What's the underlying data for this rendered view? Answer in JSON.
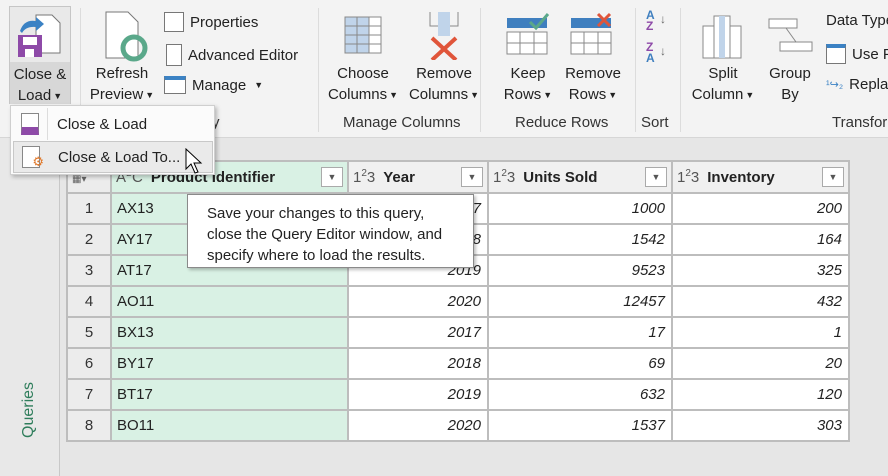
{
  "ribbon": {
    "close_load": {
      "line1": "Close &",
      "line2": "Load"
    },
    "refresh": {
      "line1": "Refresh",
      "line2": "Preview"
    },
    "properties": "Properties",
    "advanced_editor": "Advanced Editor",
    "manage": "Manage",
    "query_group_label": "y",
    "choose_columns": {
      "line1": "Choose",
      "line2": "Columns"
    },
    "remove_columns": {
      "line1": "Remove",
      "line2": "Columns"
    },
    "manage_columns_label": "Manage Columns",
    "keep_rows": {
      "line1": "Keep",
      "line2": "Rows"
    },
    "remove_rows": {
      "line1": "Remove",
      "line2": "Rows"
    },
    "reduce_rows_label": "Reduce Rows",
    "sort_label": "Sort",
    "split_column": {
      "line1": "Split",
      "line2": "Column"
    },
    "group_by": {
      "line1": "Group",
      "line2": "By"
    },
    "data_type": "Data Type",
    "use_first_row": "Use F",
    "replace_values": "Repla",
    "transform_label": "Transfor"
  },
  "dropdown": {
    "items": [
      {
        "label": "Close & Load"
      },
      {
        "label": "Close & Load To..."
      }
    ],
    "highlighted": 1
  },
  "tooltip": {
    "lines": [
      "Save your changes to this query,",
      "close the Query Editor window, and",
      "specify where to load the results."
    ]
  },
  "queries_pane": {
    "label": "Queries"
  },
  "table": {
    "columns": [
      {
        "type": "ABC",
        "name": "Product Identifier"
      },
      {
        "type": "123",
        "name": "Year"
      },
      {
        "type": "123",
        "name": "Units Sold"
      },
      {
        "type": "123",
        "name": "Inventory"
      }
    ],
    "rows": [
      [
        "1",
        "AX13",
        "2017",
        "1000",
        "200"
      ],
      [
        "2",
        "AY17",
        "2018",
        "1542",
        "164"
      ],
      [
        "3",
        "AT17",
        "2019",
        "9523",
        "325"
      ],
      [
        "4",
        "AO11",
        "2020",
        "12457",
        "432"
      ],
      [
        "5",
        "BX13",
        "2017",
        "17",
        "1"
      ],
      [
        "6",
        "BY17",
        "2018",
        "69",
        "20"
      ],
      [
        "7",
        "BT17",
        "2019",
        "632",
        "120"
      ],
      [
        "8",
        "BO11",
        "2020",
        "1537",
        "303"
      ]
    ]
  },
  "colors": {
    "accent_green": "#2e7d5b",
    "selected_column": "#d9f1e4",
    "close_purple": "#8e4aa8",
    "remove_red": "#e0553a"
  }
}
